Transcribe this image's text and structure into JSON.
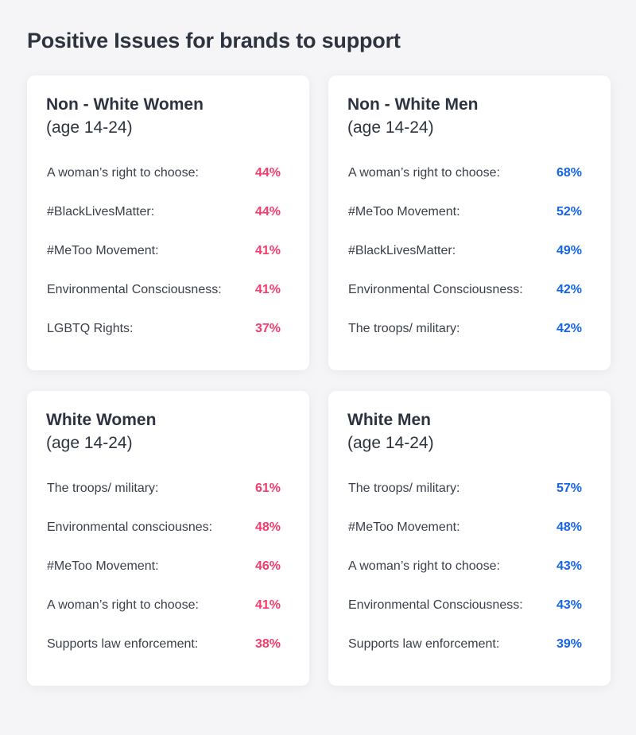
{
  "title": "Positive Issues for brands to support",
  "accent_colors": {
    "pink": "#f23d6d",
    "blue": "#1664e8"
  },
  "cards": [
    {
      "title": "Non - White Women",
      "subtitle": "(age 14-24)",
      "items": [
        {
          "label": "A woman’s right to choose:",
          "value": "44%"
        },
        {
          "label": "#BlackLivesMatter:",
          "value": "44%"
        },
        {
          "label": "#MeToo Movement:",
          "value": "41%"
        },
        {
          "label": "Environmental Consciousness:",
          "value": "41%"
        },
        {
          "label": "LGBTQ Rights:",
          "value": "37%"
        }
      ]
    },
    {
      "title": "Non - White Men",
      "subtitle": "(age 14-24)",
      "items": [
        {
          "label": "A woman’s right to choose:",
          "value": "68%"
        },
        {
          "label": "#MeToo Movement:",
          "value": "52%"
        },
        {
          "label": "#BlackLivesMatter:",
          "value": "49%"
        },
        {
          "label": "Environmental Consciousness:",
          "value": "42%"
        },
        {
          "label": "The troops/ military:",
          "value": "42%"
        }
      ]
    },
    {
      "title": "White Women",
      "subtitle": "(age 14-24)",
      "items": [
        {
          "label": "The troops/ military:",
          "value": "61%"
        },
        {
          "label": "Environmental consciousnes:",
          "value": "48%"
        },
        {
          "label": "#MeToo Movement:",
          "value": "46%"
        },
        {
          "label": "A woman’s right to choose:",
          "value": "41%"
        },
        {
          "label": "Supports law enforcement:",
          "value": "38%"
        }
      ]
    },
    {
      "title": "White Men",
      "subtitle": "(age 14-24)",
      "items": [
        {
          "label": "The troops/ military:",
          "value": "57%"
        },
        {
          "label": "#MeToo Movement:",
          "value": "48%"
        },
        {
          "label": "A woman’s right to choose:",
          "value": "43%"
        },
        {
          "label": "Environmental Consciousness:",
          "value": "43%"
        },
        {
          "label": "Supports law enforcement:",
          "value": "39%"
        }
      ]
    }
  ]
}
